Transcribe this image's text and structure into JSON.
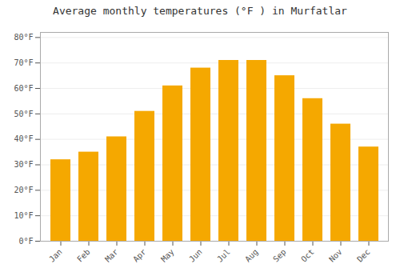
{
  "chart_data": {
    "type": "bar",
    "title": "Average monthly temperatures (°F ) in Murfatlar",
    "categories": [
      "Jan",
      "Feb",
      "Mar",
      "Apr",
      "May",
      "Jun",
      "Jul",
      "Aug",
      "Sep",
      "Oct",
      "Nov",
      "Dec"
    ],
    "values": [
      32,
      35,
      41,
      51,
      61,
      68,
      71,
      71,
      65,
      56,
      46,
      37
    ],
    "color": "#F5A800",
    "ylim": [
      0,
      82
    ],
    "yticks": [
      {
        "value": 0,
        "label": "0°F"
      },
      {
        "value": 10,
        "label": "10°F"
      },
      {
        "value": 20,
        "label": "20°F"
      },
      {
        "value": 30,
        "label": "30°F"
      },
      {
        "value": 40,
        "label": "40°F"
      },
      {
        "value": 50,
        "label": "50°F"
      },
      {
        "value": 60,
        "label": "60°F"
      },
      {
        "value": 70,
        "label": "70°F"
      },
      {
        "value": 80,
        "label": "80°F"
      }
    ],
    "grid": true
  }
}
